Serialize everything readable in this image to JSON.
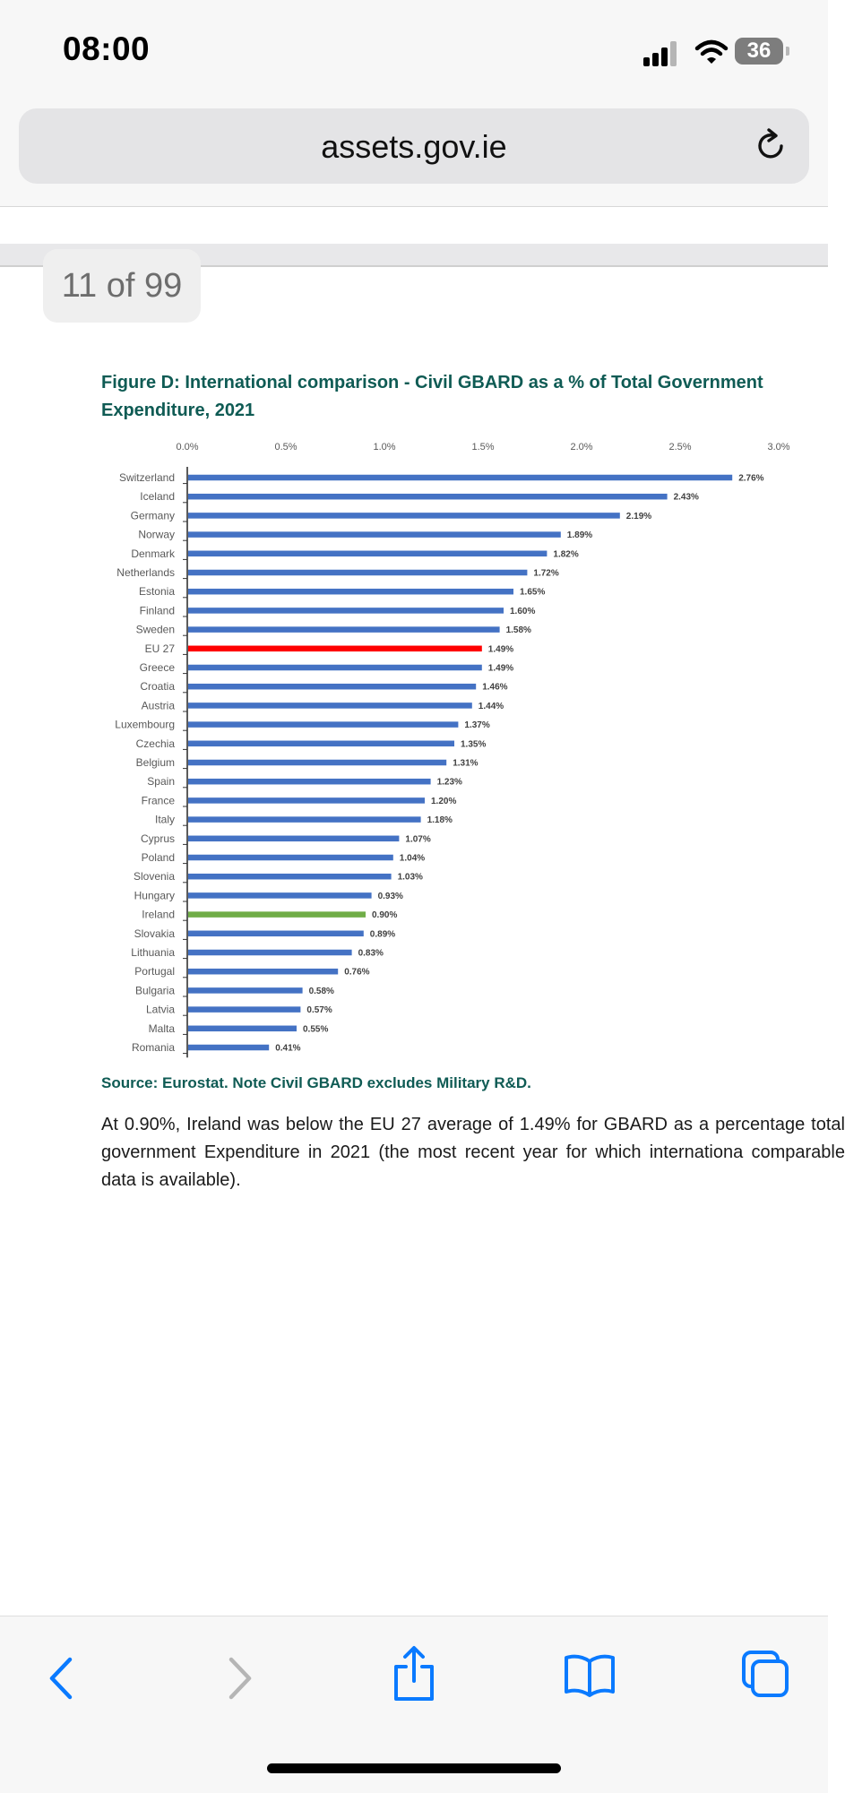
{
  "status_bar": {
    "time": "08:00",
    "battery": "36"
  },
  "browser": {
    "url": "assets.gov.ie"
  },
  "viewer": {
    "page_indicator": "11 of 99"
  },
  "figure": {
    "title": "Figure D: International comparison - Civil GBARD as a % of Total Government Expenditure, 2021",
    "source": "Source: Eurostat. Note Civil GBARD excludes Military R&D."
  },
  "chart_data": {
    "type": "bar",
    "orientation": "horizontal",
    "title": "",
    "xlabel": "",
    "ylabel": "",
    "xlim": [
      0,
      3.0
    ],
    "x_ticks": [
      "0.0%",
      "0.5%",
      "1.0%",
      "1.5%",
      "2.0%",
      "2.5%",
      "3.0%"
    ],
    "grid": false,
    "legend": "none",
    "categories": [
      "Switzerland",
      "Iceland",
      "Germany",
      "Norway",
      "Denmark",
      "Netherlands",
      "Estonia",
      "Finland",
      "Sweden",
      "EU 27",
      "Greece",
      "Croatia",
      "Austria",
      "Luxembourg",
      "Czechia",
      "Belgium",
      "Spain",
      "France",
      "Italy",
      "Cyprus",
      "Poland",
      "Slovenia",
      "Hungary",
      "Ireland",
      "Slovakia",
      "Lithuania",
      "Portugal",
      "Bulgaria",
      "Latvia",
      "Malta",
      "Romania"
    ],
    "values": [
      2.76,
      2.43,
      2.19,
      1.89,
      1.82,
      1.72,
      1.65,
      1.6,
      1.58,
      1.49,
      1.49,
      1.46,
      1.44,
      1.37,
      1.35,
      1.31,
      1.23,
      1.2,
      1.18,
      1.07,
      1.04,
      1.03,
      0.93,
      0.9,
      0.89,
      0.83,
      0.76,
      0.58,
      0.57,
      0.55,
      0.41
    ],
    "data_labels": [
      "2.76%",
      "2.43%",
      "2.19%",
      "1.89%",
      "1.82%",
      "1.72%",
      "1.65%",
      "1.60%",
      "1.58%",
      "1.49%",
      "1.49%",
      "1.46%",
      "1.44%",
      "1.37%",
      "1.35%",
      "1.31%",
      "1.23%",
      "1.20%",
      "1.18%",
      "1.07%",
      "1.04%",
      "1.03%",
      "0.93%",
      "0.90%",
      "0.89%",
      "0.83%",
      "0.76%",
      "0.58%",
      "0.57%",
      "0.55%",
      "0.41%"
    ],
    "colors": {
      "default": "#4472c4",
      "EU 27": "#ff0000",
      "Ireland": "#70ad47"
    }
  },
  "body": {
    "paragraph": "At 0.90%, Ireland was below the EU 27 average of 1.49% for GBARD as a percentage total government Expenditure in 2021 (the most recent year for which internationa comparable data is available)."
  },
  "toolbar": {
    "back": "chevron-left-icon",
    "forward": "chevron-right-icon",
    "share": "share-icon",
    "bookmarks": "book-icon",
    "tabs": "tabs-icon",
    "accent_color": "#0a7aff",
    "disabled_color": "#b5b5b5"
  }
}
